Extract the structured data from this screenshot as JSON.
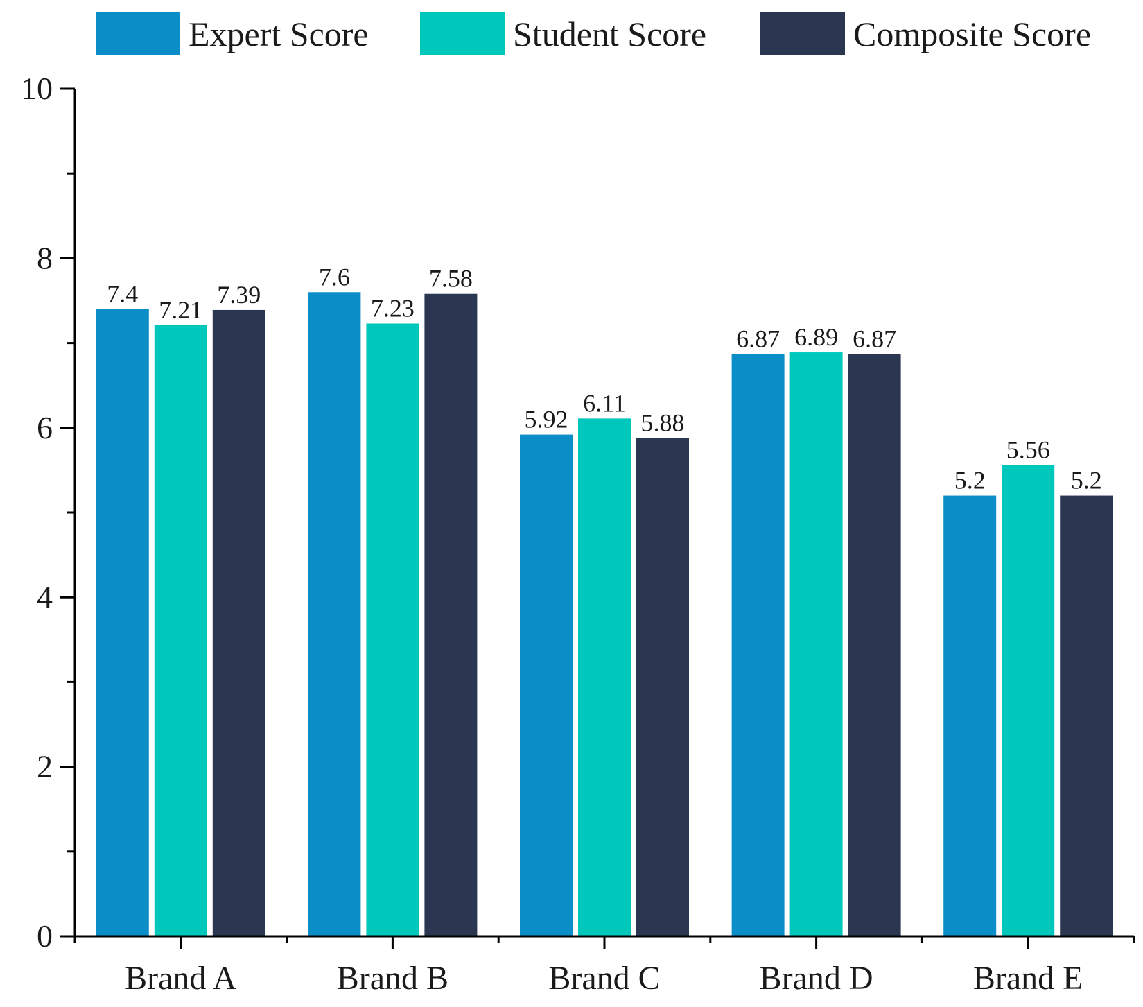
{
  "chart_data": {
    "type": "bar",
    "categories": [
      "Brand A",
      "Brand B",
      "Brand C",
      "Brand D",
      "Brand E"
    ],
    "series": [
      {
        "name": "Expert Score",
        "color": "#0b8dc8",
        "values": [
          7.4,
          7.6,
          5.92,
          6.87,
          5.2
        ]
      },
      {
        "name": "Student Score",
        "color": "#00c7bb",
        "values": [
          7.21,
          7.23,
          6.11,
          6.89,
          5.56
        ]
      },
      {
        "name": "Composite Score",
        "color": "#2b3650",
        "values": [
          7.39,
          7.58,
          5.88,
          6.87,
          5.2
        ]
      }
    ],
    "value_labels": [
      [
        "7.4",
        "7.6",
        "5.92",
        "6.87",
        "5.2"
      ],
      [
        "7.21",
        "7.23",
        "6.11",
        "6.89",
        "5.56"
      ],
      [
        "7.39",
        "7.58",
        "5.88",
        "6.87",
        "5.2"
      ]
    ],
    "ylim": [
      0,
      10
    ],
    "yticks": [
      0,
      2,
      4,
      6,
      8,
      10
    ],
    "ytick_labels": [
      "0",
      "2",
      "4",
      "6",
      "8",
      "10"
    ],
    "y_minor_step": 1,
    "grid": false,
    "legend_position": "top"
  }
}
